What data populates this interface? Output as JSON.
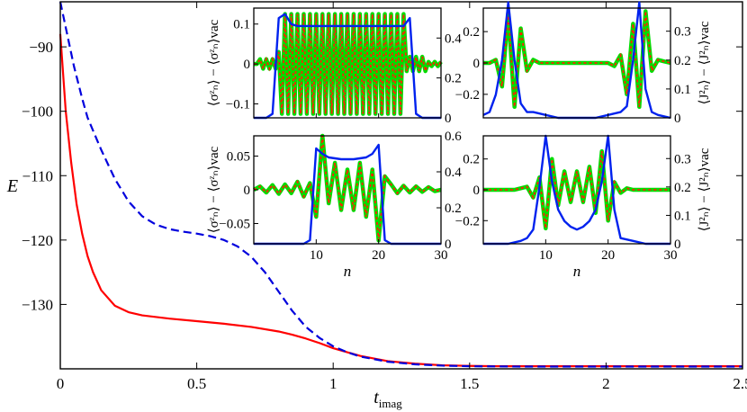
{
  "chart_data": [
    {
      "id": "main",
      "type": "line",
      "xlabel": "t",
      "xlabel_sub": "imag",
      "ylabel": "E",
      "xlim": [
        0,
        2.5
      ],
      "ylim": [
        -140,
        -83
      ],
      "xticks": [
        0,
        0.5,
        1,
        1.5,
        2,
        2.5
      ],
      "xtick_labels": [
        "0",
        "0.5",
        "1",
        "1.5",
        "2",
        "2.5"
      ],
      "yticks": [
        -130,
        -120,
        -110,
        -100,
        -90
      ],
      "ytick_labels": [
        "−130",
        "−120",
        "−110",
        "−100",
        "−90"
      ],
      "series": [
        {
          "color": "#ff0000",
          "dash": "solid",
          "x": [
            0,
            0.02,
            0.04,
            0.06,
            0.08,
            0.1,
            0.12,
            0.15,
            0.2,
            0.25,
            0.3,
            0.4,
            0.5,
            0.6,
            0.7,
            0.8,
            0.85,
            0.9,
            0.95,
            1.0,
            1.05,
            1.1,
            1.2,
            1.3,
            1.4,
            1.5,
            1.6,
            1.8,
            2.0,
            2.2,
            2.5
          ],
          "y": [
            -88,
            -100,
            -108,
            -114.5,
            -119,
            -122.5,
            -125,
            -127.8,
            -130.2,
            -131.2,
            -131.7,
            -132.2,
            -132.6,
            -133.0,
            -133.5,
            -134.2,
            -134.7,
            -135.3,
            -136.0,
            -136.8,
            -137.4,
            -138.0,
            -138.8,
            -139.2,
            -139.45,
            -139.55,
            -139.6,
            -139.6,
            -139.6,
            -139.6,
            -139.6
          ]
        },
        {
          "color": "#0000dd",
          "dash": "dashed",
          "x": [
            0,
            0.02,
            0.05,
            0.08,
            0.1,
            0.15,
            0.2,
            0.25,
            0.3,
            0.35,
            0.4,
            0.45,
            0.5,
            0.55,
            0.6,
            0.65,
            0.7,
            0.75,
            0.8,
            0.85,
            0.9,
            0.95,
            1.0,
            1.05,
            1.1,
            1.2,
            1.3,
            1.4,
            1.5,
            1.7,
            2.0,
            2.5
          ],
          "y": [
            -83,
            -87,
            -93,
            -98,
            -101,
            -106,
            -110.5,
            -114,
            -116.3,
            -117.6,
            -118.3,
            -118.7,
            -119.0,
            -119.4,
            -120.0,
            -121.0,
            -122.6,
            -125.0,
            -128.0,
            -131.0,
            -133.5,
            -135.2,
            -136.5,
            -137.4,
            -138.1,
            -138.9,
            -139.3,
            -139.5,
            -139.6,
            -139.65,
            -139.65,
            -139.65
          ]
        }
      ]
    },
    {
      "id": "inset-top-left",
      "type": "line",
      "xlim": [
        0,
        30
      ],
      "ylim": [
        -0.135,
        0.14
      ],
      "y2lim": [
        0,
        0.55
      ],
      "left_label": "⟨σᶻₙ⟩ − ⟨σᶻₙ⟩vac",
      "yticks": [
        -0.1,
        0,
        0.1
      ],
      "ytick_labels": [
        "−0.1",
        "0",
        "0.1"
      ],
      "y2ticks": [
        0,
        0.2,
        0.4
      ],
      "y2tick_labels": [
        "0",
        "0.2",
        "0.4"
      ],
      "xticks": [
        10,
        20,
        30
      ],
      "xtick_labels": [],
      "osc": {
        "n_start": 4,
        "n_end": 24,
        "amp": 0.125,
        "pre_amp": 0.012,
        "post_amp": 0.018,
        "pre_start": 1,
        "post_end": 30
      },
      "envelope": {
        "x": [
          0,
          1,
          2,
          3,
          4,
          5,
          6,
          7,
          8,
          10,
          12,
          15,
          18,
          20,
          22,
          24,
          25,
          26,
          27,
          28,
          29,
          30
        ],
        "y": [
          0,
          0,
          0,
          0.02,
          0.5,
          0.52,
          0.47,
          0.46,
          0.46,
          0.46,
          0.46,
          0.46,
          0.46,
          0.46,
          0.46,
          0.46,
          0.5,
          0.02,
          0,
          0,
          0,
          0
        ]
      }
    },
    {
      "id": "inset-top-right",
      "type": "line",
      "xlim": [
        0,
        30
      ],
      "ylim": [
        -0.35,
        0.35
      ],
      "y2lim": [
        0,
        0.38
      ],
      "right_label": "⟨J²ₙ⟩ − ⟨J²ₙ⟩vac",
      "yticks": [
        -0.2,
        0,
        0.2
      ],
      "ytick_labels": [
        "−0.2",
        "0",
        "0.2"
      ],
      "y2ticks": [
        0,
        0.1,
        0.2,
        0.3
      ],
      "y2tick_labels": [
        "0",
        "0.1",
        "0.2",
        "0.3"
      ],
      "xticks": [
        10,
        20,
        30
      ],
      "xtick_labels": [],
      "osc_pairs": {
        "x": [
          0,
          1,
          2,
          3,
          4,
          5,
          6,
          7,
          8,
          9,
          10,
          11,
          12,
          13,
          14,
          15,
          16,
          17,
          18,
          19,
          20,
          21,
          22,
          23,
          24,
          25,
          26,
          27,
          28,
          29,
          30
        ],
        "y": [
          0,
          0,
          0.02,
          -0.15,
          0.32,
          -0.28,
          0.22,
          -0.05,
          0.02,
          0,
          0,
          0,
          0,
          0,
          0,
          0,
          0,
          0,
          0,
          0,
          0,
          -0.02,
          0.05,
          -0.2,
          0.25,
          -0.28,
          0.33,
          -0.05,
          0.02,
          0.01,
          0
        ]
      },
      "envelope": {
        "x": [
          0,
          1,
          2,
          3,
          4,
          5,
          6,
          7,
          8,
          10,
          12,
          15,
          18,
          20,
          22,
          23,
          24,
          25,
          26,
          27,
          28,
          30
        ],
        "y": [
          0.01,
          0.02,
          0.08,
          0.2,
          0.4,
          0.2,
          0.05,
          0.02,
          0.02,
          0.01,
          0,
          0,
          0,
          0.01,
          0.02,
          0.04,
          0.2,
          0.4,
          0.1,
          0.02,
          0.01,
          0
        ]
      }
    },
    {
      "id": "inset-bottom-left",
      "type": "line",
      "xlabel": "n",
      "xlim": [
        0,
        30
      ],
      "ylim": [
        -0.08,
        0.08
      ],
      "y2lim": [
        0,
        0.6
      ],
      "left_label": "⟨σᶻₙ⟩ − ⟨σᶻₙ⟩vac",
      "yticks": [
        -0.05,
        0,
        0.05
      ],
      "ytick_labels": [
        "−0.05",
        "0",
        "0.05"
      ],
      "y2ticks": [
        0,
        0.2,
        0.4,
        0.6
      ],
      "y2tick_labels": [
        "0",
        "0.2",
        "0.4",
        "0.6"
      ],
      "xticks": [
        10,
        20,
        30
      ],
      "xtick_labels": [
        "10",
        "20",
        "30"
      ],
      "pts": {
        "x": [
          0,
          1,
          2,
          3,
          4,
          5,
          6,
          7,
          8,
          9,
          10,
          11,
          12,
          13,
          14,
          15,
          16,
          17,
          18,
          19,
          20,
          21,
          22,
          23,
          24,
          25,
          26,
          27,
          28,
          29,
          30
        ],
        "y": [
          0,
          0.005,
          -0.004,
          0.007,
          -0.006,
          0.008,
          -0.005,
          0.012,
          -0.01,
          0.01,
          -0.04,
          0.08,
          -0.02,
          0.04,
          -0.03,
          0.03,
          -0.03,
          0.04,
          -0.04,
          0.03,
          -0.075,
          0.02,
          0.008,
          -0.005,
          0.006,
          -0.004,
          0.005,
          -0.003,
          0.004,
          -0.002,
          0
        ]
      },
      "envelope": {
        "x": [
          0,
          2,
          4,
          6,
          8,
          9,
          10,
          11,
          12,
          14,
          16,
          18,
          19,
          20,
          21,
          22,
          24,
          26,
          28,
          30
        ],
        "y": [
          0,
          0,
          0,
          0,
          0,
          0.02,
          0.53,
          0.5,
          0.48,
          0.47,
          0.47,
          0.48,
          0.5,
          0.55,
          0.02,
          0,
          0,
          0,
          0,
          0
        ]
      }
    },
    {
      "id": "inset-bottom-right",
      "type": "line",
      "xlabel": "n",
      "xlim": [
        0,
        30
      ],
      "ylim": [
        -0.35,
        0.35
      ],
      "y2lim": [
        0,
        0.38
      ],
      "right_label": "⟨J²ₙ⟩ − ⟨J²ₙ⟩vac",
      "yticks": [
        -0.2,
        0,
        0.2
      ],
      "ytick_labels": [
        "−0.2",
        "0",
        "0.2"
      ],
      "y2ticks": [
        0,
        0.1,
        0.2,
        0.3
      ],
      "y2tick_labels": [
        "0",
        "0.1",
        "0.2",
        "0.3"
      ],
      "xticks": [
        10,
        20,
        30
      ],
      "xtick_labels": [
        "10",
        "20",
        "30"
      ],
      "pts": {
        "x": [
          0,
          1,
          2,
          3,
          4,
          5,
          6,
          7,
          8,
          9,
          10,
          11,
          12,
          13,
          14,
          15,
          16,
          17,
          18,
          19,
          20,
          21,
          22,
          23,
          24,
          25,
          26,
          27,
          28,
          29,
          30
        ],
        "y": [
          0,
          0,
          0,
          0,
          0,
          0,
          0.01,
          0.02,
          -0.05,
          0.08,
          -0.25,
          0.2,
          -0.1,
          0.12,
          -0.08,
          0.12,
          -0.08,
          0.15,
          -0.15,
          0.25,
          -0.2,
          0.05,
          -0.02,
          0.01,
          0,
          0,
          0,
          0,
          0,
          0,
          0
        ]
      },
      "envelope": {
        "x": [
          0,
          2,
          4,
          6,
          7,
          8,
          9,
          10,
          11,
          12,
          13,
          14,
          15,
          16,
          17,
          18,
          19,
          20,
          21,
          22,
          24,
          26,
          28,
          30
        ],
        "y": [
          0,
          0,
          0,
          0.01,
          0.02,
          0.05,
          0.2,
          0.38,
          0.22,
          0.12,
          0.08,
          0.06,
          0.05,
          0.06,
          0.08,
          0.12,
          0.22,
          0.38,
          0.12,
          0.02,
          0.01,
          0,
          0,
          0
        ]
      }
    }
  ]
}
